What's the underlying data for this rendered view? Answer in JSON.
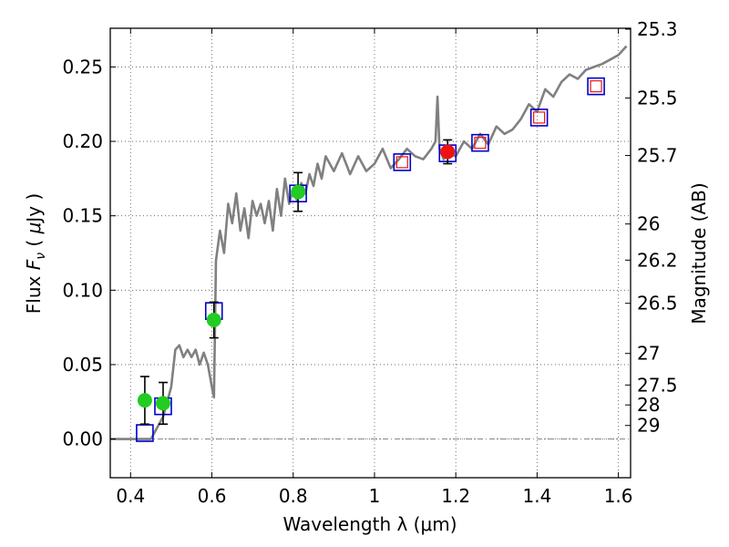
{
  "chart_data": {
    "type": "scatter",
    "xlabel": "Wavelength  λ (μm)",
    "ylabel": "Flux  F_ν  ( μJy )",
    "ylabel_parts": {
      "prefix": "Flux  ",
      "symbol": "F",
      "subscript": "ν",
      "paren_open": "  ( ",
      "mu": "μ",
      "unit": "Jy )"
    },
    "right_ylabel": "Magnitude (AB)",
    "xlim": [
      0.35,
      1.63
    ],
    "ylim": [
      -0.026,
      0.276
    ],
    "grid": true,
    "x_ticks": [
      {
        "value": 0.4,
        "label": "0.4"
      },
      {
        "value": 0.6,
        "label": "0.6"
      },
      {
        "value": 0.8,
        "label": "0.8"
      },
      {
        "value": 1.0,
        "label": "1"
      },
      {
        "value": 1.2,
        "label": "1.2"
      },
      {
        "value": 1.4,
        "label": "1.4"
      },
      {
        "value": 1.6,
        "label": "1.6"
      }
    ],
    "y_ticks": [
      {
        "value": 0.0,
        "label": "0.00"
      },
      {
        "value": 0.05,
        "label": "0.05"
      },
      {
        "value": 0.1,
        "label": "0.10"
      },
      {
        "value": 0.15,
        "label": "0.15"
      },
      {
        "value": 0.2,
        "label": "0.20"
      },
      {
        "value": 0.25,
        "label": "0.25"
      }
    ],
    "right_ticks": [
      {
        "flux": 0.2754,
        "label": "25.3"
      },
      {
        "flux": 0.2291,
        "label": "25.5"
      },
      {
        "flux": 0.1905,
        "label": "25.7"
      },
      {
        "flux": 0.1445,
        "label": "26"
      },
      {
        "flux": 0.1202,
        "label": "26.2"
      },
      {
        "flux": 0.0912,
        "label": "26.5"
      },
      {
        "flux": 0.0575,
        "label": "27"
      },
      {
        "flux": 0.0363,
        "label": "27.5"
      },
      {
        "flux": 0.0229,
        "label": "28"
      },
      {
        "flux": 0.0091,
        "label": "29"
      }
    ],
    "colors": {
      "spectrum": "#808080",
      "model_square": "#0000cc",
      "optical_point": "#22cc22",
      "ir_point": "#ee1111",
      "ir_square": "#ee1111",
      "errorbar": "#000000",
      "zero_line": "#888888"
    },
    "spectrum": {
      "name": "",
      "x": [
        0.35,
        0.4,
        0.45,
        0.48,
        0.5,
        0.51,
        0.52,
        0.53,
        0.54,
        0.55,
        0.56,
        0.57,
        0.58,
        0.59,
        0.6,
        0.605,
        0.61,
        0.62,
        0.63,
        0.64,
        0.65,
        0.66,
        0.67,
        0.68,
        0.69,
        0.7,
        0.71,
        0.72,
        0.73,
        0.74,
        0.75,
        0.76,
        0.77,
        0.78,
        0.79,
        0.8,
        0.81,
        0.82,
        0.83,
        0.84,
        0.85,
        0.86,
        0.87,
        0.88,
        0.9,
        0.92,
        0.94,
        0.96,
        0.98,
        1.0,
        1.02,
        1.04,
        1.06,
        1.08,
        1.1,
        1.12,
        1.14,
        1.15,
        1.155,
        1.16,
        1.17,
        1.18,
        1.2,
        1.22,
        1.24,
        1.26,
        1.28,
        1.3,
        1.32,
        1.34,
        1.36,
        1.38,
        1.4,
        1.42,
        1.44,
        1.46,
        1.48,
        1.5,
        1.52,
        1.54,
        1.56,
        1.58,
        1.6,
        1.62
      ],
      "y": [
        0.0,
        0.0,
        0.0,
        0.015,
        0.035,
        0.06,
        0.063,
        0.055,
        0.06,
        0.055,
        0.06,
        0.05,
        0.058,
        0.05,
        0.035,
        0.028,
        0.12,
        0.14,
        0.125,
        0.158,
        0.145,
        0.165,
        0.14,
        0.155,
        0.135,
        0.16,
        0.15,
        0.158,
        0.145,
        0.16,
        0.14,
        0.168,
        0.15,
        0.175,
        0.158,
        0.168,
        0.16,
        0.172,
        0.165,
        0.178,
        0.17,
        0.185,
        0.175,
        0.19,
        0.18,
        0.192,
        0.178,
        0.19,
        0.18,
        0.185,
        0.195,
        0.182,
        0.188,
        0.195,
        0.19,
        0.188,
        0.195,
        0.2,
        0.23,
        0.195,
        0.188,
        0.192,
        0.19,
        0.2,
        0.195,
        0.205,
        0.198,
        0.21,
        0.205,
        0.208,
        0.215,
        0.225,
        0.22,
        0.235,
        0.23,
        0.24,
        0.245,
        0.242,
        0.248,
        0.25,
        0.252,
        0.255,
        0.258,
        0.264
      ]
    },
    "model_squares": {
      "name": "",
      "points": [
        {
          "x": 0.435,
          "y": 0.004
        },
        {
          "x": 0.48,
          "y": 0.022
        },
        {
          "x": 0.605,
          "y": 0.086
        },
        {
          "x": 0.812,
          "y": 0.165
        },
        {
          "x": 1.068,
          "y": 0.186
        },
        {
          "x": 1.18,
          "y": 0.192
        },
        {
          "x": 1.26,
          "y": 0.199
        },
        {
          "x": 1.405,
          "y": 0.216
        },
        {
          "x": 1.545,
          "y": 0.237
        }
      ]
    },
    "ir_squares": {
      "name": "",
      "points": [
        {
          "x": 1.068,
          "y": 0.186
        },
        {
          "x": 1.26,
          "y": 0.199
        },
        {
          "x": 1.405,
          "y": 0.216
        },
        {
          "x": 1.545,
          "y": 0.237
        }
      ]
    },
    "optical_points": {
      "name": "",
      "points": [
        {
          "x": 0.435,
          "y": 0.026,
          "err": 0.016
        },
        {
          "x": 0.48,
          "y": 0.024,
          "err": 0.014
        },
        {
          "x": 0.605,
          "y": 0.08,
          "err": 0.012
        },
        {
          "x": 0.812,
          "y": 0.166,
          "err": 0.013
        }
      ]
    },
    "ir_points": {
      "name": "",
      "points": [
        {
          "x": 1.18,
          "y": 0.193,
          "err": 0.008
        }
      ]
    }
  }
}
